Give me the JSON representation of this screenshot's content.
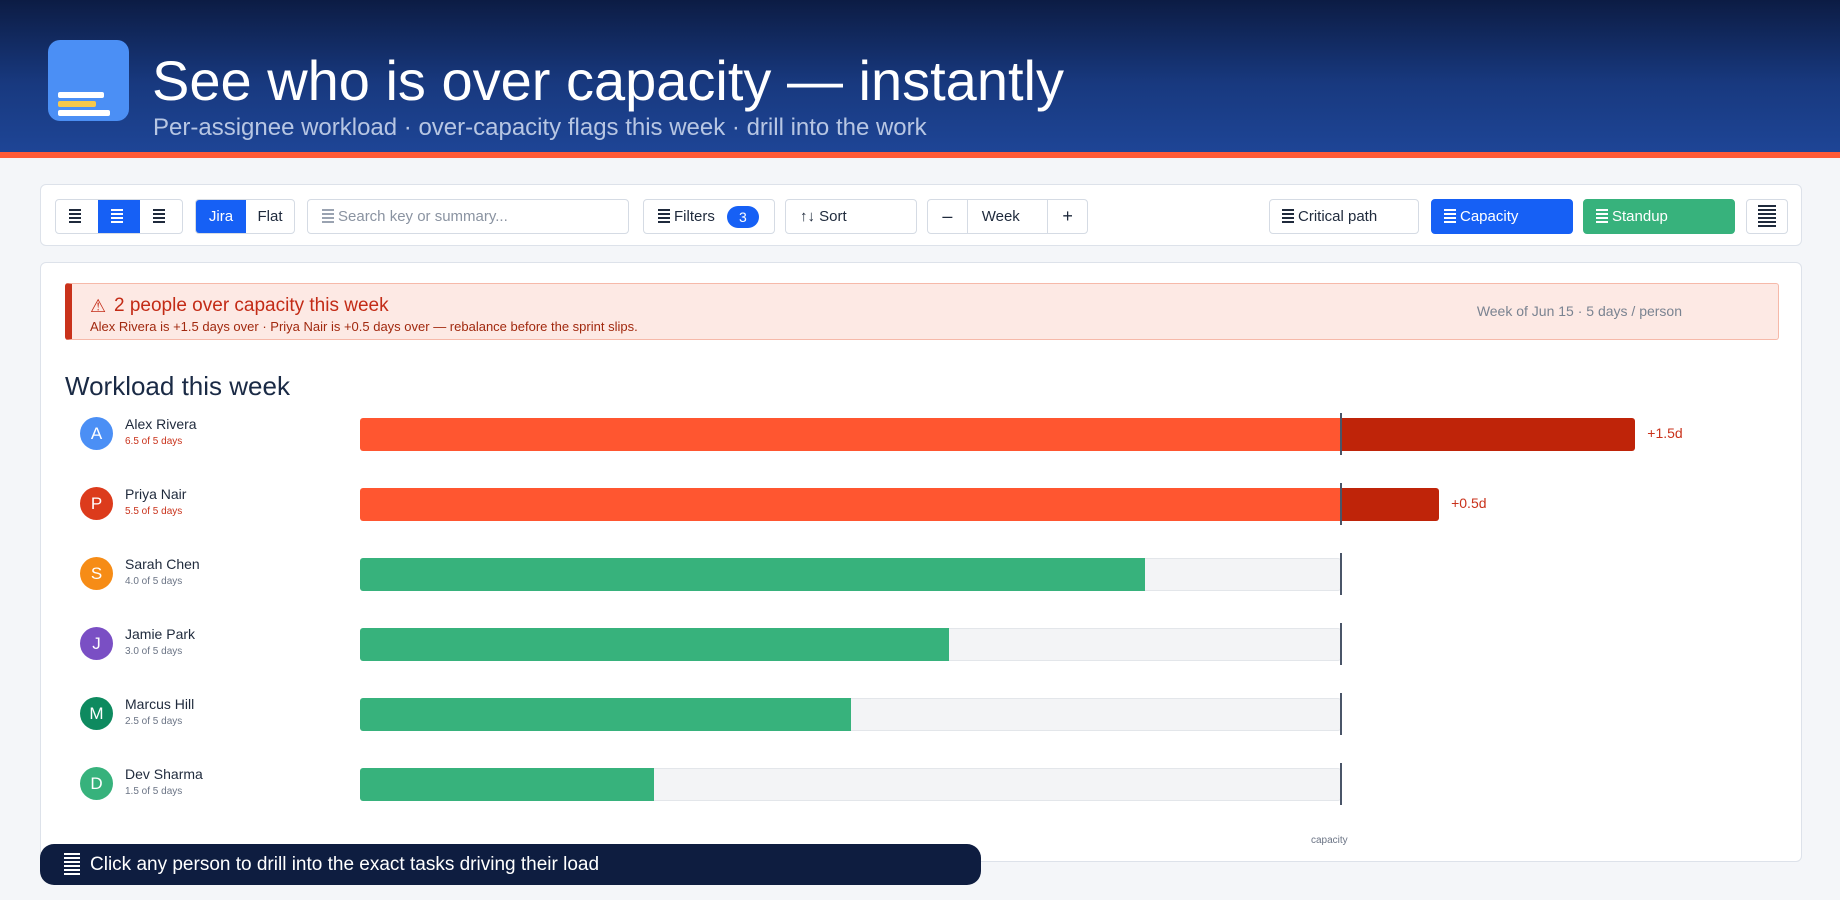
{
  "header": {
    "title": "See who is over capacity — instantly",
    "subtitle": "Per-assignee workload · over-capacity flags this week · drill into the work"
  },
  "toolbar": {
    "source_options": [
      "Jira",
      "Flat"
    ],
    "search_placeholder": "Search key or summary...",
    "filters_label": "Filters",
    "filters_count": "3",
    "sort_label": "↑↓ Sort",
    "zoom_minus": "–",
    "zoom_value": "Week",
    "zoom_plus": "+",
    "critical_path_label": "Critical path",
    "capacity_label": "Capacity",
    "standup_label": "Standup"
  },
  "alert": {
    "icon": "warning-icon",
    "title": "2 people over capacity this week",
    "detail": "Alex Rivera is +1.5 days over · Priya Nair is +0.5 days over — rebalance before the sprint slips.",
    "meta": "Week of Jun 15 · 5 days / person"
  },
  "workload": {
    "title": "Workload this week",
    "capacity_caption": "capacity",
    "capacity_days": 5,
    "people": [
      {
        "initial": "A",
        "name": "Alex Rivera",
        "load_text": "6.5 of 5 days",
        "days": 6.5,
        "over_label": "+1.5d",
        "color": "#4b8ff5"
      },
      {
        "initial": "P",
        "name": "Priya Nair",
        "load_text": "5.5 of 5 days",
        "days": 5.5,
        "over_label": "+0.5d",
        "color": "#dc3b1c"
      },
      {
        "initial": "S",
        "name": "Sarah Chen",
        "load_text": "4.0 of 5 days",
        "days": 4.0,
        "over_label": "",
        "color": "#f68c16"
      },
      {
        "initial": "J",
        "name": "Jamie Park",
        "load_text": "3.0 of 5 days",
        "days": 3.0,
        "over_label": "",
        "color": "#7a4fc4"
      },
      {
        "initial": "M",
        "name": "Marcus Hill",
        "load_text": "2.5 of 5 days",
        "days": 2.5,
        "over_label": "",
        "color": "#0e8a5f"
      },
      {
        "initial": "D",
        "name": "Dev Sharma",
        "load_text": "1.5 of 5 days",
        "days": 1.5,
        "over_label": "",
        "color": "#37b27c"
      }
    ]
  },
  "colors": {
    "primary": "#1660f5",
    "ok": "#37b27c",
    "full": "#ff5630",
    "over": "#bf2409",
    "accent": "#ff5a36"
  },
  "tip": {
    "text": "Click any person to drill into the exact tasks driving their load"
  }
}
